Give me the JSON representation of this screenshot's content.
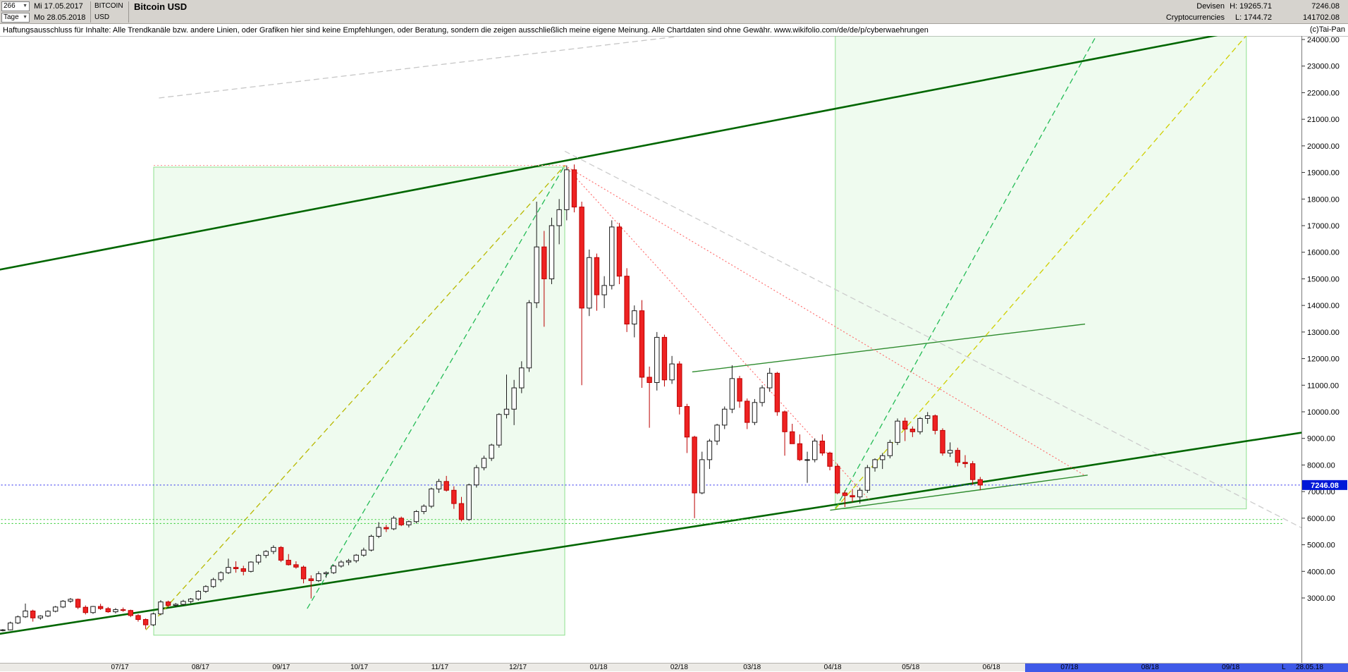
{
  "header": {
    "bars_count": "266",
    "date_from": "Mi 17.05.2017",
    "period": "Tage",
    "date_to": "Mo 28.05.2018",
    "symbol_line1": "BITCOIN",
    "symbol_line2": "USD",
    "title": "Bitcoin USD",
    "category_line1": "Devisen",
    "category_line2": "Cryptocurrencies",
    "high_label": "H: 19265.71",
    "low_label": "L: 1744.72",
    "close_value": "7246.08",
    "secondary_value": "141702.08"
  },
  "disclaimer": {
    "text": "Haftungsausschluss für Inhalte: Alle Trendkanäle bzw. andere Linien, oder Grafiken hier sind keine Empfehlungen, oder Beratung, sondern die zeigen ausschließlich meine eigene Meinung. Alle Chartdaten sind ohne Gewähr.  www.wikifolio.com/de/de/p/cyberwaehrungen",
    "copyright": "(c)Tai-Pan"
  },
  "axis": {
    "current_price": "7246.08",
    "end_marker": "L",
    "end_date": "28.05.18",
    "selection_from_day": 393
  },
  "colors": {
    "up": "#ffffff",
    "up_border": "#1a1a1a",
    "down": "#ee2222",
    "down_border": "#bb0000",
    "box_fill": "rgba(140,230,140,0.14)",
    "box_border": "#8ee08e",
    "tag_bg": "#0018d8",
    "tag_text": "#ffffff",
    "axis_text": "#000000"
  },
  "chart_data": {
    "type": "candlestick",
    "title": "Bitcoin USD",
    "period": "Tage",
    "range_start": "17.05.2017",
    "range_end": "28.05.2018",
    "high": 19265.71,
    "low": 1744.72,
    "last": 7246.08,
    "ylim": [
      3000,
      24000
    ],
    "y_tick_step": 1000,
    "days_per_bar": 2.89,
    "x_months": [
      {
        "label": "07/17",
        "day": 45
      },
      {
        "label": "08/17",
        "day": 76
      },
      {
        "label": "09/17",
        "day": 107
      },
      {
        "label": "10/17",
        "day": 137
      },
      {
        "label": "11/17",
        "day": 168
      },
      {
        "label": "12/17",
        "day": 198
      },
      {
        "label": "01/18",
        "day": 229
      },
      {
        "label": "02/18",
        "day": 260
      },
      {
        "label": "03/18",
        "day": 288
      },
      {
        "label": "04/18",
        "day": 319
      },
      {
        "label": "05/18",
        "day": 349
      },
      {
        "label": "06/18",
        "day": 380
      },
      {
        "label": "07/18",
        "day": 410
      },
      {
        "label": "08/18",
        "day": 441
      },
      {
        "label": "09/18",
        "day": 472
      }
    ],
    "ohlc": [
      [
        1790,
        1830,
        1744,
        1800
      ],
      [
        1800,
        2110,
        1780,
        2060
      ],
      [
        2060,
        2340,
        2020,
        2290
      ],
      [
        2290,
        2790,
        2250,
        2510
      ],
      [
        2510,
        2560,
        2110,
        2250
      ],
      [
        2250,
        2350,
        2180,
        2320
      ],
      [
        2320,
        2540,
        2280,
        2500
      ],
      [
        2500,
        2700,
        2460,
        2660
      ],
      [
        2660,
        2920,
        2620,
        2880
      ],
      [
        2880,
        3000,
        2820,
        2950
      ],
      [
        2950,
        2980,
        2580,
        2650
      ],
      [
        2650,
        2720,
        2380,
        2450
      ],
      [
        2450,
        2700,
        2400,
        2680
      ],
      [
        2680,
        2780,
        2550,
        2600
      ],
      [
        2600,
        2660,
        2440,
        2480
      ],
      [
        2480,
        2620,
        2420,
        2560
      ],
      [
        2560,
        2640,
        2480,
        2530
      ],
      [
        2530,
        2560,
        2280,
        2340
      ],
      [
        2340,
        2390,
        2110,
        2190
      ],
      [
        2190,
        2230,
        1830,
        1990
      ],
      [
        1990,
        2450,
        1940,
        2400
      ],
      [
        2400,
        2920,
        2350,
        2850
      ],
      [
        2850,
        2900,
        2650,
        2720
      ],
      [
        2720,
        2810,
        2660,
        2760
      ],
      [
        2760,
        2930,
        2720,
        2870
      ],
      [
        2870,
        3000,
        2800,
        2960
      ],
      [
        2960,
        3290,
        2900,
        3250
      ],
      [
        3250,
        3480,
        3190,
        3430
      ],
      [
        3430,
        3760,
        3380,
        3690
      ],
      [
        3690,
        4000,
        3600,
        3950
      ],
      [
        3950,
        4480,
        3900,
        4150
      ],
      [
        4150,
        4380,
        3950,
        4100
      ],
      [
        4100,
        4210,
        3850,
        4000
      ],
      [
        4000,
        4380,
        3960,
        4350
      ],
      [
        4350,
        4650,
        4260,
        4600
      ],
      [
        4600,
        4800,
        4500,
        4750
      ],
      [
        4750,
        4980,
        4650,
        4900
      ],
      [
        4900,
        4950,
        4350,
        4420
      ],
      [
        4420,
        4650,
        4220,
        4250
      ],
      [
        4250,
        4380,
        4100,
        4160
      ],
      [
        4160,
        4220,
        3550,
        3720
      ],
      [
        3720,
        3850,
        2980,
        3650
      ],
      [
        3650,
        4000,
        3600,
        3910
      ],
      [
        3910,
        4000,
        3760,
        3950
      ],
      [
        3950,
        4250,
        3900,
        4200
      ],
      [
        4200,
        4420,
        4140,
        4350
      ],
      [
        4350,
        4470,
        4230,
        4400
      ],
      [
        4400,
        4650,
        4320,
        4610
      ],
      [
        4610,
        4890,
        4550,
        4800
      ],
      [
        4800,
        5380,
        4750,
        5320
      ],
      [
        5320,
        5850,
        5250,
        5650
      ],
      [
        5650,
        5750,
        5480,
        5600
      ],
      [
        5600,
        6080,
        5550,
        6000
      ],
      [
        6000,
        6060,
        5700,
        5750
      ],
      [
        5750,
        5910,
        5650,
        5870
      ],
      [
        5870,
        6300,
        5800,
        6250
      ],
      [
        6250,
        6520,
        6150,
        6450
      ],
      [
        6450,
        7150,
        6380,
        7100
      ],
      [
        7100,
        7480,
        6950,
        7380
      ],
      [
        7380,
        7590,
        7000,
        7050
      ],
      [
        7050,
        7200,
        6350,
        6550
      ],
      [
        6550,
        6800,
        5880,
        5950
      ],
      [
        5950,
        7300,
        5900,
        7250
      ],
      [
        7250,
        8000,
        7150,
        7900
      ],
      [
        7900,
        8350,
        7800,
        8250
      ],
      [
        8250,
        8800,
        8150,
        8750
      ],
      [
        8750,
        9950,
        8650,
        9900
      ],
      [
        9900,
        11400,
        9750,
        10100
      ],
      [
        10100,
        11200,
        9500,
        10900
      ],
      [
        10900,
        11900,
        10700,
        11650
      ],
      [
        11650,
        14200,
        11500,
        14100
      ],
      [
        14100,
        17900,
        13900,
        16200
      ],
      [
        16200,
        16800,
        13200,
        15000
      ],
      [
        15000,
        17300,
        14800,
        17000
      ],
      [
        17000,
        18000,
        16300,
        17600
      ],
      [
        17600,
        19265,
        17200,
        19100
      ],
      [
        19100,
        19300,
        17500,
        17700
      ],
      [
        17700,
        17900,
        11000,
        13900
      ],
      [
        13900,
        16100,
        13600,
        15800
      ],
      [
        15800,
        15950,
        13800,
        14400
      ],
      [
        14400,
        15100,
        13900,
        14750
      ],
      [
        14750,
        17200,
        14600,
        16950
      ],
      [
        16950,
        17100,
        14800,
        15100
      ],
      [
        15100,
        15400,
        13000,
        13300
      ],
      [
        13300,
        14000,
        12800,
        13800
      ],
      [
        13800,
        14200,
        10900,
        11300
      ],
      [
        11300,
        11700,
        9400,
        11100
      ],
      [
        11100,
        13000,
        10800,
        12800
      ],
      [
        12800,
        12900,
        10950,
        11200
      ],
      [
        11200,
        12100,
        11050,
        11800
      ],
      [
        11800,
        11900,
        9900,
        10200
      ],
      [
        10200,
        10300,
        8450,
        9050
      ],
      [
        9050,
        9100,
        6000,
        6950
      ],
      [
        6950,
        8500,
        6900,
        8200
      ],
      [
        8200,
        8980,
        7850,
        8900
      ],
      [
        8900,
        9550,
        8750,
        9500
      ],
      [
        9500,
        10200,
        9350,
        10100
      ],
      [
        10100,
        11750,
        9950,
        11250
      ],
      [
        11250,
        11350,
        10150,
        10400
      ],
      [
        10400,
        10500,
        9350,
        9600
      ],
      [
        9600,
        10480,
        9500,
        10350
      ],
      [
        10350,
        11000,
        10200,
        10900
      ],
      [
        10900,
        11650,
        10750,
        11450
      ],
      [
        11450,
        11500,
        9850,
        10000
      ],
      [
        10000,
        10050,
        8350,
        9250
      ],
      [
        9250,
        9550,
        8800,
        8800
      ],
      [
        8800,
        9150,
        8150,
        8200
      ],
      [
        8200,
        8500,
        7330,
        8200
      ],
      [
        8200,
        9000,
        8100,
        8900
      ],
      [
        8900,
        9150,
        8350,
        8450
      ],
      [
        8450,
        8500,
        7800,
        7950
      ],
      [
        7950,
        8050,
        6900,
        6950
      ],
      [
        6950,
        7050,
        6420,
        6850
      ],
      [
        6850,
        7100,
        6600,
        6800
      ],
      [
        6800,
        7150,
        6550,
        7050
      ],
      [
        7050,
        8000,
        6950,
        7900
      ],
      [
        7900,
        8250,
        7750,
        8200
      ],
      [
        8200,
        8450,
        7850,
        8350
      ],
      [
        8350,
        8950,
        8250,
        8850
      ],
      [
        8850,
        9750,
        8750,
        9650
      ],
      [
        9650,
        9780,
        8900,
        9350
      ],
      [
        9350,
        9450,
        9050,
        9250
      ],
      [
        9250,
        9800,
        9150,
        9750
      ],
      [
        9750,
        9990,
        9550,
        9850
      ],
      [
        9850,
        9900,
        9150,
        9300
      ],
      [
        9300,
        9380,
        8350,
        8450
      ],
      [
        8450,
        8850,
        8300,
        8550
      ],
      [
        8550,
        8650,
        7950,
        8100
      ],
      [
        8100,
        8370,
        7900,
        8050
      ],
      [
        8050,
        8150,
        7250,
        7450
      ],
      [
        7450,
        7550,
        7050,
        7246
      ]
    ],
    "overlays": [
      {
        "name": "upper-trend-channel",
        "style": "solid",
        "color": "#006600",
        "width": 2.6,
        "points": [
          [
            -2,
            15330
          ],
          [
            472,
            24260
          ]
        ]
      },
      {
        "name": "lower-trend-channel",
        "style": "solid",
        "color": "#006600",
        "width": 2.6,
        "points": [
          [
            -2,
            1640
          ],
          [
            502,
            9260
          ]
        ]
      },
      {
        "name": "mid-resistance-line",
        "style": "solid",
        "color": "#2e8b2e",
        "width": 1.4,
        "points": [
          [
            265,
            11500
          ],
          [
            416,
            13300
          ]
        ]
      },
      {
        "name": "minor-support-line",
        "style": "solid",
        "color": "#2e8b2e",
        "width": 1.4,
        "points": [
          [
            318,
            6300
          ],
          [
            417,
            7620
          ]
        ]
      },
      {
        "name": "fan-line-olive-left",
        "style": "dashed",
        "color": "#b8b800",
        "width": 1.3,
        "points": [
          [
            55,
            1800
          ],
          [
            216,
            19265
          ]
        ]
      },
      {
        "name": "fan-line-green-left",
        "style": "dashed",
        "color": "#22bb55",
        "width": 1.3,
        "points": [
          [
            117,
            2600
          ],
          [
            216,
            19265
          ]
        ]
      },
      {
        "name": "fan-line-green-right",
        "style": "dashed",
        "color": "#22bb55",
        "width": 1.3,
        "points": [
          [
            320,
            6350
          ],
          [
            421,
            24260
          ]
        ]
      },
      {
        "name": "fan-line-olive-right",
        "style": "dashed",
        "color": "#cfcf00",
        "width": 1.3,
        "points": [
          [
            320,
            6350
          ],
          [
            479,
            24260
          ]
        ]
      },
      {
        "name": "peak-horizontal",
        "style": "dotted",
        "color": "#ff9999",
        "width": 1.1,
        "points": [
          [
            58,
            19265
          ],
          [
            216,
            19265
          ]
        ]
      },
      {
        "name": "descending-resistance-1",
        "style": "dotted",
        "color": "#ff6666",
        "width": 1.1,
        "points": [
          [
            216,
            19265
          ],
          [
            416,
            7600
          ]
        ]
      },
      {
        "name": "descending-resistance-2",
        "style": "dotted",
        "color": "#ff6666",
        "width": 1.1,
        "points": [
          [
            216,
            19265
          ],
          [
            333,
            6700
          ]
        ]
      },
      {
        "name": "gray-channel-upper",
        "style": "dashed",
        "color": "#c6c6c6",
        "width": 1.3,
        "points": [
          [
            60,
            21800
          ],
          [
            272,
            24260
          ]
        ]
      },
      {
        "name": "gray-descending",
        "style": "dashed",
        "color": "#cccccc",
        "width": 1.3,
        "points": [
          [
            216,
            19800
          ],
          [
            500,
            5600
          ]
        ]
      },
      {
        "name": "current-price-line",
        "style": "dotted",
        "color": "#2222ee",
        "width": 1.1,
        "points": [
          [
            -2,
            7246
          ],
          [
            502,
            7246
          ]
        ]
      },
      {
        "name": "support-dotted-1",
        "style": "dotted",
        "color": "#33cc33",
        "width": 1.1,
        "points": [
          [
            -2,
            5950
          ],
          [
            492,
            5950
          ]
        ]
      },
      {
        "name": "support-dotted-2",
        "style": "dotted",
        "color": "#33cc33",
        "width": 1.1,
        "points": [
          [
            -2,
            5800
          ],
          [
            492,
            5800
          ]
        ]
      }
    ],
    "boxes": [
      {
        "name": "trend-projection-box-1",
        "days": [
          58,
          216
        ],
        "prices": [
          1600,
          19200
        ]
      },
      {
        "name": "trend-projection-box-2",
        "days": [
          320,
          478
        ],
        "prices": [
          6350,
          24150
        ]
      }
    ]
  }
}
